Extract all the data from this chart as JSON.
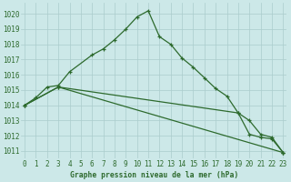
{
  "title": "Graphe pression niveau de la mer (hPa)",
  "background_color": "#cce8e8",
  "grid_color": "#aacccc",
  "line_color": "#2d6a2d",
  "x_labels": [
    "0",
    "1",
    "2",
    "3",
    "4",
    "5",
    "6",
    "7",
    "8",
    "9",
    "10",
    "11",
    "12",
    "13",
    "14",
    "15",
    "16",
    "17",
    "18",
    "19",
    "20",
    "21",
    "22",
    "23"
  ],
  "yticks": [
    1011,
    1012,
    1013,
    1014,
    1015,
    1016,
    1017,
    1018,
    1019,
    1020
  ],
  "ylim": [
    1010.5,
    1020.7
  ],
  "xlim": [
    -0.3,
    23.3
  ],
  "line1_x": [
    0,
    1,
    2,
    3,
    4,
    6,
    7,
    8,
    9,
    10,
    11,
    12,
    13,
    14,
    15,
    16,
    17,
    18,
    19,
    20,
    21,
    22,
    23
  ],
  "line1_y": [
    1014.0,
    1014.5,
    1015.2,
    1015.3,
    1016.2,
    1017.3,
    1017.7,
    1018.3,
    1019.0,
    1019.8,
    1020.2,
    1018.5,
    1018.0,
    1017.1,
    1016.5,
    1015.8,
    1015.1,
    1014.6,
    1013.5,
    1013.0,
    1012.1,
    1011.9,
    1010.9
  ],
  "line2_x": [
    0,
    3,
    23
  ],
  "line2_y": [
    1014.0,
    1015.2,
    1010.9
  ],
  "line3_x": [
    0,
    3,
    19,
    20,
    21,
    22,
    23
  ],
  "line3_y": [
    1014.0,
    1015.2,
    1013.5,
    1012.1,
    1011.9,
    1011.8,
    1010.9
  ],
  "xlabel_fontsize": 5.5,
  "ylabel_fontsize": 5.5,
  "title_fontsize": 5.8,
  "line_width": 0.9,
  "marker_size": 3.5
}
